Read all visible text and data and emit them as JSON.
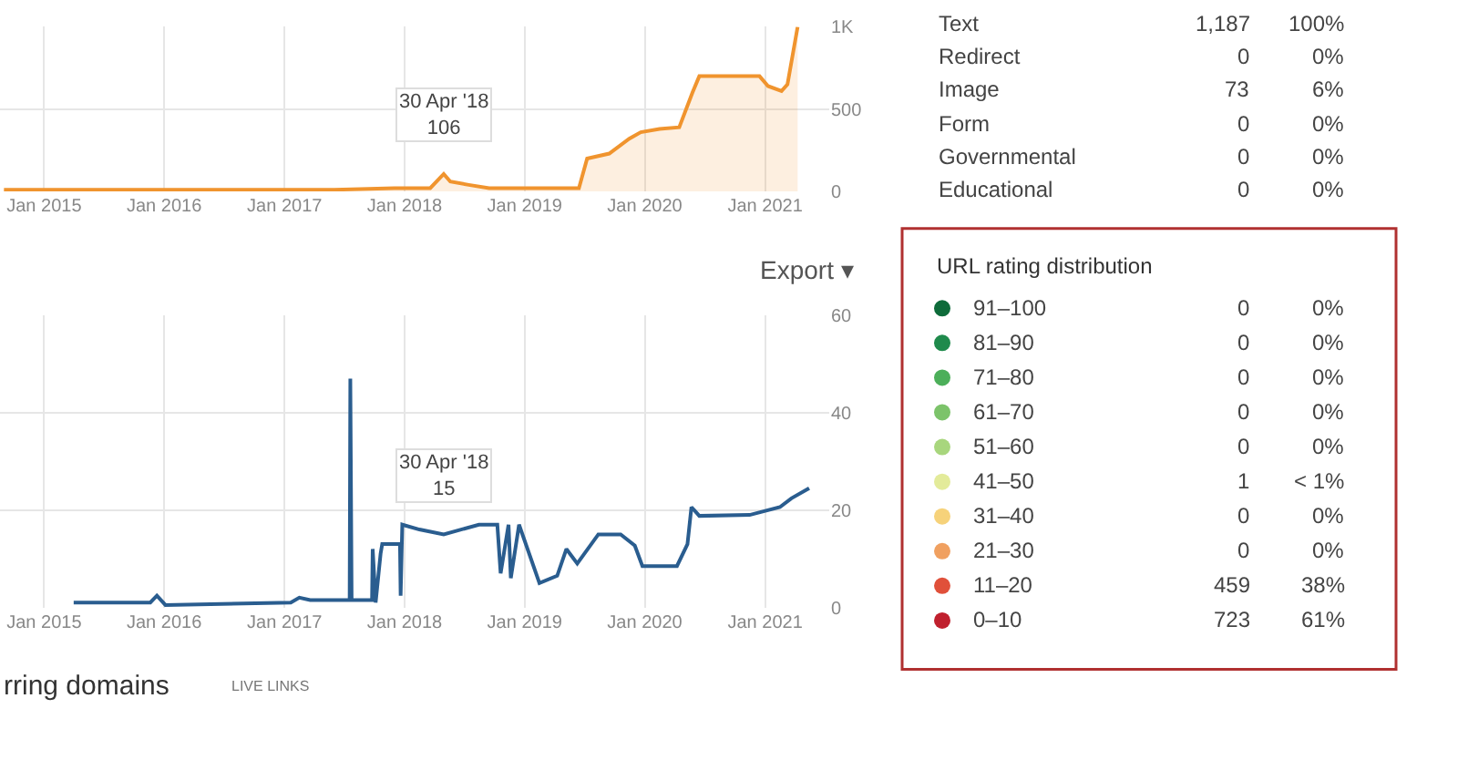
{
  "chart_data": [
    {
      "type": "area",
      "x": [
        "2014-09-01",
        "2015-06-01",
        "2016-06-01",
        "2017-06-01",
        "2017-12-01",
        "2018-03-20",
        "2018-04-30",
        "2018-05-20",
        "2018-07-15",
        "2018-09-15",
        "2019-01-15",
        "2019-06-15",
        "2019-07-10",
        "2019-09-15",
        "2019-11-15",
        "2019-12-20",
        "2020-02-15",
        "2020-04-15",
        "2020-05-25",
        "2020-06-15",
        "2020-12-15",
        "2021-01-10",
        "2021-02-20",
        "2021-03-10",
        "2021-04-10"
      ],
      "series": [
        {
          "color": "#f0942e",
          "values": [
            10,
            10,
            10,
            10,
            20,
            20,
            106,
            60,
            40,
            20,
            20,
            20,
            200,
            230,
            320,
            360,
            380,
            390,
            600,
            700,
            700,
            640,
            610,
            650,
            1000
          ]
        }
      ],
      "xlim": [
        "2014-08-20",
        "2021-07-15"
      ],
      "ylim": [
        0,
        1000
      ],
      "xticks": [
        {
          "value": "2015-01-01",
          "label": "Jan 2015"
        },
        {
          "value": "2016-01-01",
          "label": "Jan 2016"
        },
        {
          "value": "2017-01-01",
          "label": "Jan 2017"
        },
        {
          "value": "2018-01-01",
          "label": "Jan 2018"
        },
        {
          "value": "2019-01-01",
          "label": "Jan 2019"
        },
        {
          "value": "2020-01-01",
          "label": "Jan 2020"
        },
        {
          "value": "2021-01-01",
          "label": "Jan 2021"
        }
      ],
      "yticks": [
        0,
        500,
        {
          "value": 1000,
          "label": "1K"
        }
      ],
      "annotations": [
        {
          "text": "30 Apr '18\n106",
          "x": "2018-04-30",
          "y": 106
        }
      ],
      "grid": true
    },
    {
      "type": "line",
      "x": [
        "2015-04-01",
        "2015-11-20",
        "2015-12-10",
        "2016-01-05",
        "2017-01-20",
        "2017-02-15",
        "2017-03-20",
        "2017-07-18",
        "2017-07-20",
        "2017-07-24",
        "2017-09-24",
        "2017-09-26",
        "2017-10-05",
        "2017-10-20",
        "2017-10-25",
        "2017-12-18",
        "2017-12-20",
        "2017-12-25",
        "2018-02-15",
        "2018-04-30",
        "2018-08-15",
        "2018-10-10",
        "2018-10-20",
        "2018-11-13",
        "2018-11-20",
        "2018-12-15",
        "2019-02-15",
        "2019-04-10",
        "2019-05-08",
        "2019-06-10",
        "2019-08-13",
        "2019-10-20",
        "2019-12-02",
        "2019-12-25",
        "2020-04-08",
        "2020-05-10",
        "2020-05-22",
        "2020-06-15",
        "2020-11-15",
        "2021-02-15",
        "2021-03-22",
        "2021-05-15"
      ],
      "series": [
        {
          "color": "#2a5d8f",
          "values": [
            1,
            1,
            2.4,
            0.5,
            1,
            2,
            1.5,
            1.5,
            47,
            1.5,
            1.5,
            12,
            1,
            11,
            13,
            13,
            2.4,
            17,
            16,
            15,
            17,
            17,
            7,
            17,
            6,
            17,
            5,
            6.5,
            12,
            9,
            15,
            15,
            12.7,
            8.5,
            8.5,
            13,
            20.6,
            18.8,
            19,
            20.6,
            22.4,
            24.5
          ]
        }
      ],
      "xlim": [
        "2014-08-20",
        "2021-07-15"
      ],
      "ylim": [
        0,
        60
      ],
      "xticks": [
        {
          "value": "2015-01-01",
          "label": "Jan 2015"
        },
        {
          "value": "2016-01-01",
          "label": "Jan 2016"
        },
        {
          "value": "2017-01-01",
          "label": "Jan 2017"
        },
        {
          "value": "2018-01-01",
          "label": "Jan 2018"
        },
        {
          "value": "2019-01-01",
          "label": "Jan 2019"
        },
        {
          "value": "2020-01-01",
          "label": "Jan 2020"
        },
        {
          "value": "2021-01-01",
          "label": "Jan 2021"
        }
      ],
      "yticks": [
        0,
        20,
        40,
        60
      ],
      "annotations": [
        {
          "text": "30 Apr '18\n15",
          "x": "2018-04-30",
          "y": 15
        },
        "Export ▾",
        "rring domains",
        "LIVE LINKS"
      ],
      "grid": true
    },
    {
      "type": "other",
      "categories": [
        "Text",
        "Redirect",
        "Image",
        "Form",
        "Governmental",
        "Educational"
      ],
      "values": [
        1187,
        0,
        73,
        0,
        0,
        0
      ],
      "value_labels": [
        "1,187",
        "0",
        "73",
        "0",
        "0",
        "0"
      ],
      "annotations": [
        "100%",
        "0%",
        "6%",
        "0%",
        "0%",
        "0%"
      ]
    },
    {
      "type": "other",
      "title": "URL rating distribution",
      "categories": [
        "91–100",
        "81–90",
        "71–80",
        "61–70",
        "51–60",
        "41–50",
        "31–40",
        "21–30",
        "11–20",
        "0–10"
      ],
      "values": [
        0,
        0,
        0,
        0,
        0,
        1,
        0,
        0,
        459,
        723
      ],
      "annotations": [
        "0%",
        "0%",
        "0%",
        "0%",
        "0%",
        "< 1%",
        "0%",
        "0%",
        "38%",
        "61%"
      ],
      "colors": [
        "#0e6b3a",
        "#1f8a4c",
        "#4caf5a",
        "#7cc36a",
        "#a8d67d",
        "#e3eb9a",
        "#f6d27a",
        "#f0a060",
        "#e0503a",
        "#c0202e"
      ],
      "data_labels": true
    }
  ]
}
